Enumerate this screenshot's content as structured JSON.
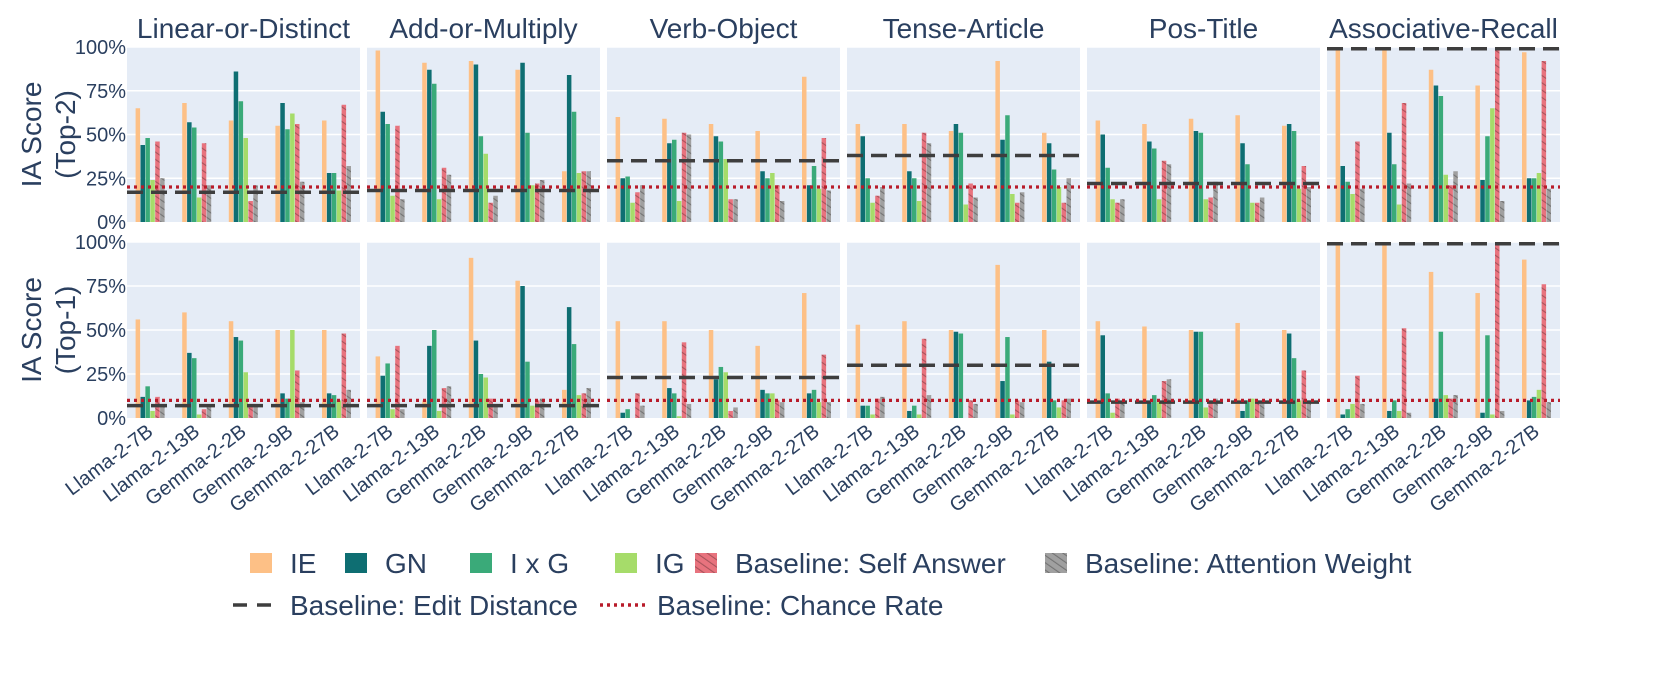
{
  "chart_data": {
    "type": "bar",
    "facets": [
      "Linear-or-Distinct",
      "Add-or-Multiply",
      "Verb-Object",
      "Tense-Article",
      "Pos-Title",
      "Associative-Recall"
    ],
    "rows": [
      {
        "key": "top2",
        "label_line1": "IA Score",
        "label_line2": "(Top-2)"
      },
      {
        "key": "top1",
        "label_line1": "IA Score",
        "label_line2": "(Top-1)"
      }
    ],
    "categories": [
      "Llama-2-7B",
      "Llama-2-13B",
      "Gemma-2-2B",
      "Gemma-2-9B",
      "Gemma-2-27B"
    ],
    "y_ticks": [
      "0%",
      "25%",
      "50%",
      "75%",
      "100%"
    ],
    "ylim": [
      0,
      100
    ],
    "series": [
      {
        "name": "IE",
        "color": "#fdc086"
      },
      {
        "name": "GN",
        "color": "#0e6e72"
      },
      {
        "name": "I x G",
        "color": "#3aaa79"
      },
      {
        "name": "IG",
        "color": "#a6dc6a"
      },
      {
        "name": "Baseline: Self Answer",
        "color": "#e8737e",
        "hatch": true
      },
      {
        "name": "Baseline: Attention Weight",
        "color": "#a0a0a0",
        "hatch": true
      }
    ],
    "lines": [
      {
        "name": "Baseline: Edit Distance",
        "color": "#3e3e3e",
        "dash": "long"
      },
      {
        "name": "Baseline: Chance Rate",
        "color": "#b81b2a",
        "dash": "dot"
      }
    ],
    "values": {
      "top2": [
        [
          [
            65,
            44,
            48,
            24,
            46,
            25
          ],
          [
            68,
            57,
            54,
            14,
            45,
            21
          ],
          [
            58,
            86,
            69,
            48,
            12,
            21
          ],
          [
            55,
            68,
            53,
            62,
            56,
            23
          ],
          [
            58,
            28,
            28,
            18,
            67,
            32
          ]
        ],
        [
          [
            98,
            63,
            56,
            15,
            55,
            13
          ],
          [
            91,
            87,
            79,
            13,
            31,
            27
          ],
          [
            92,
            90,
            49,
            39,
            11,
            15
          ],
          [
            87,
            91,
            51,
            21,
            22,
            24
          ],
          [
            29,
            84,
            63,
            28,
            29,
            29
          ]
        ],
        [
          [
            60,
            25,
            26,
            11,
            17,
            21
          ],
          [
            59,
            45,
            47,
            12,
            51,
            50
          ],
          [
            56,
            49,
            46,
            36,
            13,
            13
          ],
          [
            52,
            29,
            25,
            28,
            21,
            12
          ],
          [
            83,
            21,
            32,
            19,
            48,
            18
          ]
        ],
        [
          [
            56,
            49,
            25,
            11,
            15,
            20
          ],
          [
            56,
            29,
            25,
            12,
            51,
            45
          ],
          [
            52,
            56,
            51,
            10,
            22,
            14
          ],
          [
            92,
            47,
            61,
            16,
            11,
            17
          ],
          [
            51,
            45,
            30,
            20,
            11,
            25
          ]
        ],
        [
          [
            58,
            50,
            31,
            13,
            11,
            13
          ],
          [
            56,
            46,
            42,
            13,
            35,
            33
          ],
          [
            59,
            52,
            51,
            13,
            14,
            23
          ],
          [
            61,
            45,
            33,
            11,
            11,
            14
          ],
          [
            55,
            56,
            52,
            19,
            32,
            20
          ]
        ],
        [
          [
            99,
            32,
            23,
            16,
            46,
            19
          ],
          [
            99,
            51,
            33,
            10,
            68,
            22
          ],
          [
            87,
            78,
            72,
            27,
            21,
            29
          ],
          [
            78,
            24,
            49,
            65,
            99,
            12
          ],
          [
            97,
            25,
            25,
            28,
            92,
            19
          ]
        ]
      ],
      "top1": [
        [
          [
            56,
            12,
            18,
            4,
            12,
            8
          ],
          [
            60,
            37,
            34,
            2,
            5,
            7
          ],
          [
            55,
            46,
            44,
            26,
            8,
            8
          ],
          [
            50,
            14,
            11,
            50,
            27,
            9
          ],
          [
            50,
            14,
            13,
            10,
            48,
            16
          ]
        ],
        [
          [
            35,
            24,
            31,
            5,
            41,
            5
          ],
          [
            10,
            41,
            50,
            4,
            17,
            18
          ],
          [
            91,
            44,
            25,
            23,
            11,
            8
          ],
          [
            78,
            75,
            32,
            7,
            10,
            11
          ],
          [
            16,
            63,
            42,
            13,
            14,
            17
          ]
        ],
        [
          [
            55,
            3,
            5,
            0,
            14,
            7
          ],
          [
            55,
            17,
            14,
            1,
            43,
            8
          ],
          [
            50,
            22,
            29,
            26,
            4,
            6
          ],
          [
            41,
            16,
            14,
            14,
            10,
            9
          ],
          [
            71,
            14,
            16,
            9,
            36,
            9
          ]
        ],
        [
          [
            53,
            7,
            7,
            2,
            11,
            12
          ],
          [
            55,
            4,
            7,
            2,
            45,
            13
          ],
          [
            50,
            49,
            48,
            0,
            10,
            8
          ],
          [
            87,
            21,
            46,
            2,
            10,
            9
          ],
          [
            50,
            32,
            10,
            6,
            10,
            11
          ]
        ],
        [
          [
            55,
            47,
            14,
            3,
            11,
            9
          ],
          [
            52,
            9,
            13,
            9,
            21,
            22
          ],
          [
            50,
            49,
            49,
            6,
            10,
            11
          ],
          [
            54,
            4,
            10,
            11,
            10,
            8
          ],
          [
            50,
            48,
            34,
            10,
            27,
            10
          ]
        ],
        [
          [
            98,
            2,
            5,
            8,
            24,
            8
          ],
          [
            98,
            4,
            10,
            4,
            51,
            3
          ],
          [
            83,
            11,
            49,
            13,
            11,
            13
          ],
          [
            71,
            3,
            47,
            2,
            99,
            4
          ],
          [
            90,
            10,
            12,
            16,
            76,
            9
          ]
        ]
      ]
    },
    "edit_distance": {
      "top2": [
        17,
        18,
        35,
        38,
        22,
        99
      ],
      "top1": [
        7,
        7,
        23,
        30,
        9,
        99
      ]
    },
    "chance_rate": {
      "top2": [
        20,
        20,
        20,
        20,
        20,
        20
      ],
      "top1": [
        10,
        10,
        10,
        10,
        10,
        10
      ]
    }
  }
}
